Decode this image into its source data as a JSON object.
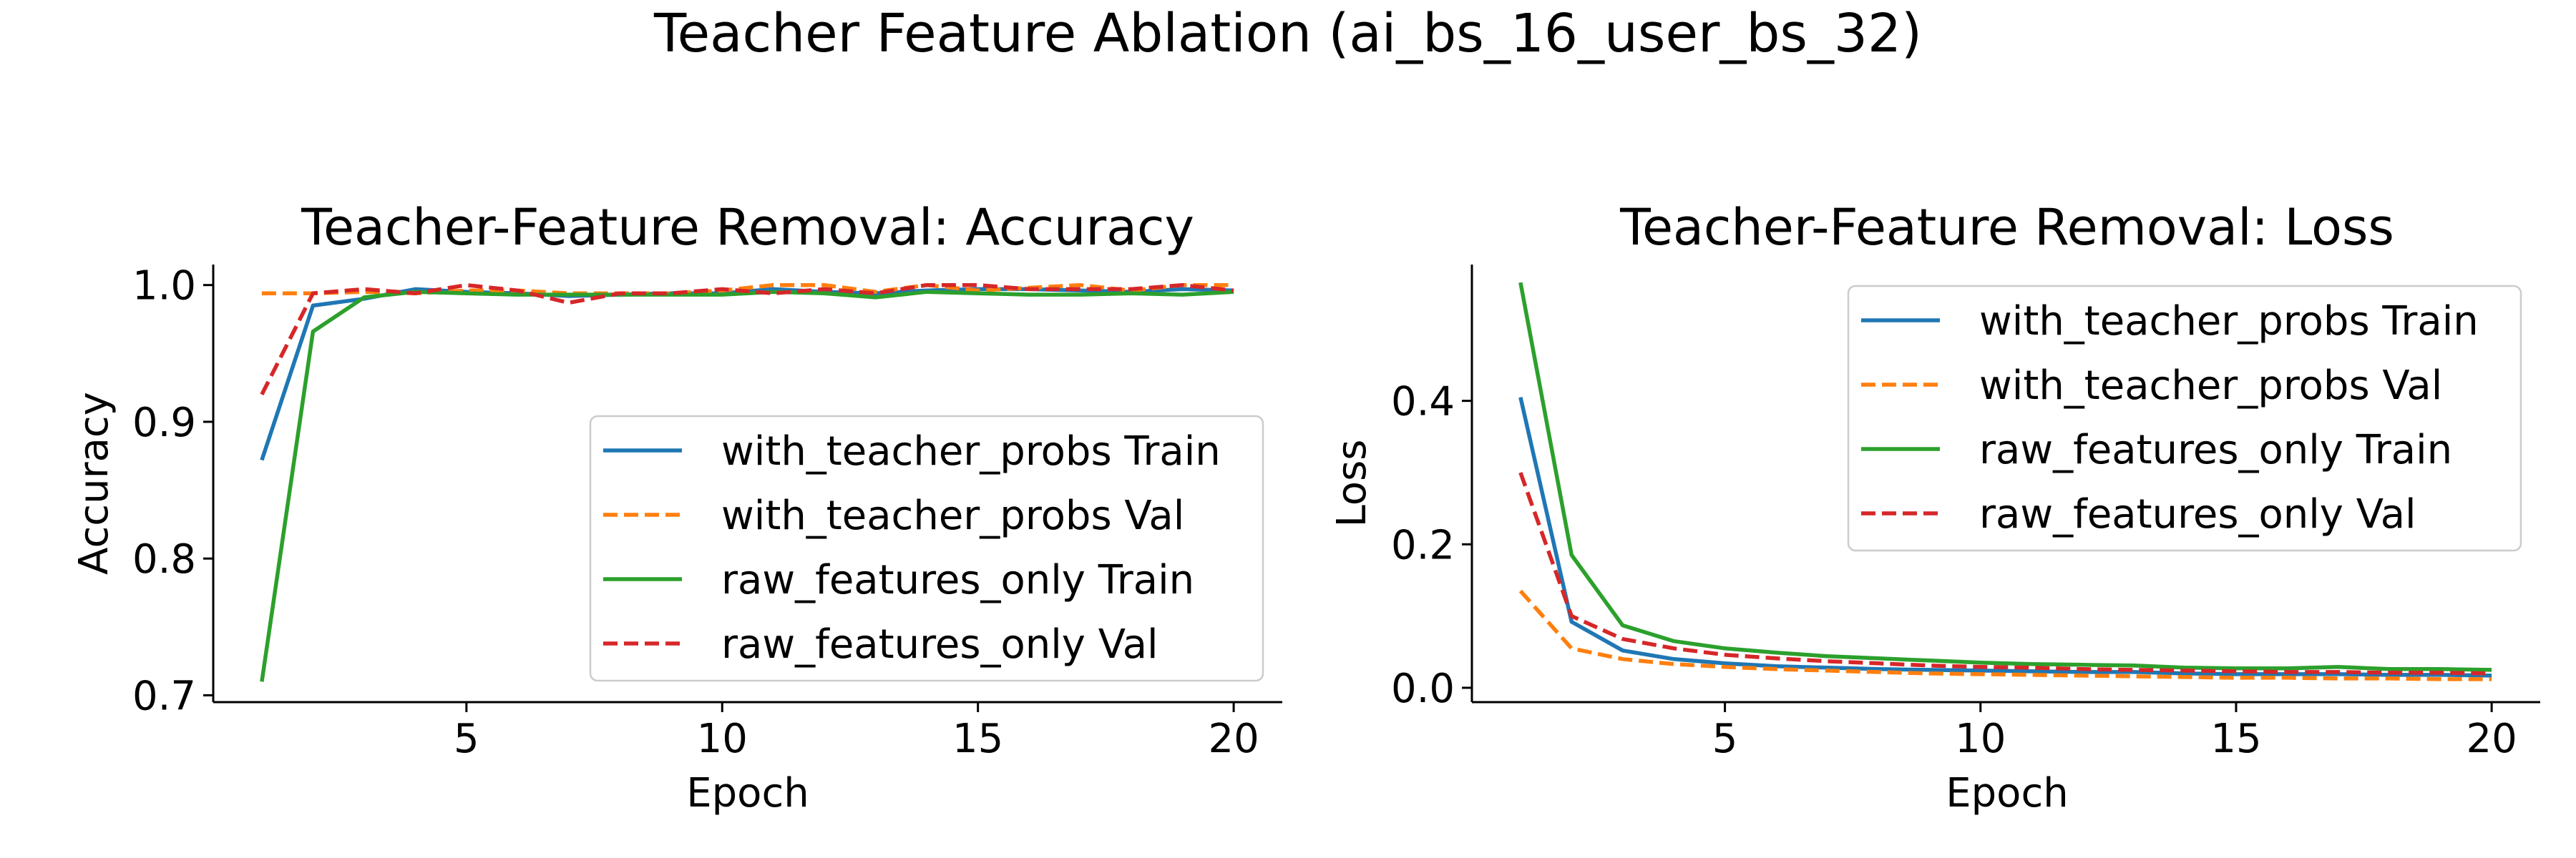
{
  "suptitle": "Teacher Feature Ablation (ai_bs_16_user_bs_32)",
  "chart_data": [
    {
      "type": "line",
      "title": "Teacher-Feature Removal: Accuracy",
      "xlabel": "Epoch",
      "ylabel": "Accuracy",
      "xlim": [
        0.05,
        20.95
      ],
      "ylim": [
        0.695,
        1.015
      ],
      "xticks": [
        5,
        10,
        15,
        20
      ],
      "yticks": [
        0.7,
        0.8,
        0.9,
        1.0
      ],
      "ytick_labels": [
        "0.7",
        "0.8",
        "0.9",
        "1.0"
      ],
      "legend_position": "lower-right",
      "x": [
        1,
        2,
        3,
        4,
        5,
        6,
        7,
        8,
        9,
        10,
        11,
        12,
        13,
        14,
        15,
        16,
        17,
        18,
        19,
        20
      ],
      "series": [
        {
          "name": "with_teacher_probs Train",
          "color": "#1f77b4",
          "dash": "solid",
          "values": [
            0.872,
            0.985,
            0.99,
            0.997,
            0.995,
            0.994,
            0.992,
            0.993,
            0.994,
            0.994,
            0.997,
            0.995,
            0.994,
            0.996,
            0.997,
            0.997,
            0.996,
            0.995,
            0.997,
            0.996
          ]
        },
        {
          "name": "with_teacher_probs Val",
          "color": "#ff7f0e",
          "dash": "dashed",
          "values": [
            0.994,
            0.994,
            0.995,
            0.994,
            0.996,
            0.996,
            0.994,
            0.994,
            0.994,
            0.996,
            1.0,
            1.0,
            0.995,
            1.0,
            0.996,
            0.998,
            1.0,
            0.996,
            1.0,
            1.0
          ]
        },
        {
          "name": "raw_features_only Train",
          "color": "#2ca02c",
          "dash": "solid",
          "values": [
            0.71,
            0.966,
            0.991,
            0.995,
            0.994,
            0.993,
            0.993,
            0.993,
            0.993,
            0.993,
            0.995,
            0.994,
            0.991,
            0.995,
            0.994,
            0.993,
            0.993,
            0.994,
            0.993,
            0.995
          ]
        },
        {
          "name": "raw_features_only Val",
          "color": "#d62728",
          "dash": "dashed",
          "values": [
            0.92,
            0.994,
            0.997,
            0.994,
            1.0,
            0.996,
            0.987,
            0.994,
            0.994,
            0.997,
            0.994,
            0.997,
            0.994,
            1.0,
            1.0,
            0.997,
            0.997,
            0.997,
            1.0,
            0.996
          ]
        }
      ]
    },
    {
      "type": "line",
      "title": "Teacher-Feature Removal: Loss",
      "xlabel": "Epoch",
      "ylabel": "Loss",
      "xlim": [
        0.05,
        20.95
      ],
      "ylim": [
        -0.02,
        0.59
      ],
      "xticks": [
        5,
        10,
        15,
        20
      ],
      "yticks": [
        0.0,
        0.2,
        0.4
      ],
      "ytick_labels": [
        "0.0",
        "0.2",
        "0.4"
      ],
      "legend_position": "upper-right",
      "x": [
        1,
        2,
        3,
        4,
        5,
        6,
        7,
        8,
        9,
        10,
        11,
        12,
        13,
        14,
        15,
        16,
        17,
        18,
        19,
        20
      ],
      "series": [
        {
          "name": "with_teacher_probs Train",
          "color": "#1f77b4",
          "dash": "solid",
          "values": [
            0.405,
            0.092,
            0.052,
            0.04,
            0.034,
            0.03,
            0.028,
            0.026,
            0.025,
            0.024,
            0.023,
            0.022,
            0.022,
            0.02,
            0.019,
            0.019,
            0.019,
            0.018,
            0.018,
            0.017
          ]
        },
        {
          "name": "with_teacher_probs Val",
          "color": "#ff7f0e",
          "dash": "dashed",
          "values": [
            0.135,
            0.055,
            0.04,
            0.033,
            0.029,
            0.026,
            0.024,
            0.022,
            0.02,
            0.019,
            0.018,
            0.017,
            0.016,
            0.015,
            0.014,
            0.014,
            0.013,
            0.013,
            0.012,
            0.012
          ]
        },
        {
          "name": "raw_features_only Train",
          "color": "#2ca02c",
          "dash": "solid",
          "values": [
            0.565,
            0.185,
            0.087,
            0.065,
            0.055,
            0.049,
            0.044,
            0.041,
            0.038,
            0.035,
            0.033,
            0.032,
            0.031,
            0.028,
            0.027,
            0.027,
            0.029,
            0.026,
            0.026,
            0.025
          ]
        },
        {
          "name": "raw_features_only Val",
          "color": "#d62728",
          "dash": "dashed",
          "values": [
            0.3,
            0.1,
            0.068,
            0.055,
            0.046,
            0.041,
            0.037,
            0.034,
            0.031,
            0.029,
            0.028,
            0.026,
            0.025,
            0.024,
            0.023,
            0.022,
            0.022,
            0.021,
            0.021,
            0.02
          ]
        }
      ]
    }
  ]
}
